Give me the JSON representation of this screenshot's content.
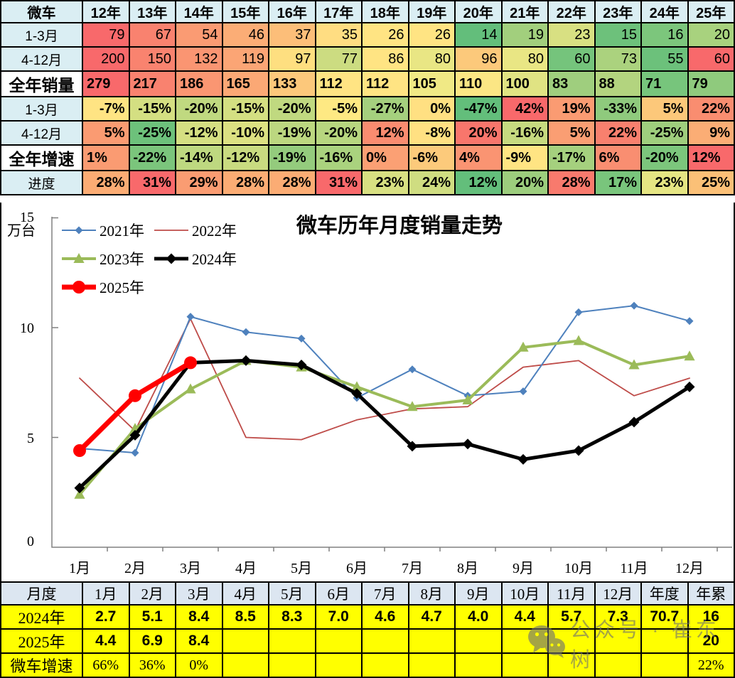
{
  "top_table": {
    "header_bg": "#DAEEF3",
    "label_bg": "#DAEEF3",
    "header": [
      "微车",
      "12年",
      "13年",
      "14年",
      "15年",
      "16年",
      "17年",
      "18年",
      "19年",
      "20年",
      "21年",
      "22年",
      "23年",
      "24年",
      "25年"
    ],
    "rows": [
      {
        "label": "1-3月",
        "big_label": false,
        "bold": false,
        "align": "right",
        "values": [
          "79",
          "67",
          "54",
          "46",
          "37",
          "35",
          "26",
          "26",
          "14",
          "19",
          "23",
          "15",
          "16",
          "20"
        ],
        "colors": [
          "#F8696B",
          "#F9826F",
          "#FA9B73",
          "#FBAD76",
          "#FCBE79",
          "#FFDD82",
          "#FFE483",
          "#FFE483",
          "#63BE7B",
          "#A2CF7D",
          "#D8E082",
          "#6DC17B",
          "#7CC67C",
          "#A8D27E"
        ]
      },
      {
        "label": "4-12月",
        "big_label": false,
        "bold": false,
        "align": "right",
        "values": [
          "200",
          "150",
          "132",
          "119",
          "97",
          "77",
          "86",
          "80",
          "96",
          "80",
          "60",
          "73",
          "55",
          "60"
        ],
        "colors": [
          "#F8696B",
          "#F9836F",
          "#FA9572",
          "#FBA575",
          "#FEDF80",
          "#CCDC81",
          "#FFE483",
          "#E9E684",
          "#FCC97B",
          "#E9E684",
          "#75C47C",
          "#ABD27E",
          "#6CC17B",
          "#F8696B"
        ]
      },
      {
        "label": "全年销量",
        "big_label": true,
        "bold": true,
        "align": "left",
        "values": [
          "279",
          "217",
          "186",
          "165",
          "133",
          "112",
          "112",
          "105",
          "110",
          "100",
          "83",
          "88",
          "71",
          "79"
        ],
        "colors": [
          "#F8696B",
          "#F9826F",
          "#FA9672",
          "#FBA875",
          "#FCC87B",
          "#FFE483",
          "#FFE483",
          "#F0E985",
          "#FBE684",
          "#E0E383",
          "#9FCE7E",
          "#B3D47F",
          "#77C57C",
          "#8FCA7D"
        ]
      },
      {
        "label": "1-3月",
        "big_label": false,
        "bold": true,
        "align": "right",
        "values": [
          "-7%",
          "-15%",
          "-20%",
          "-15%",
          "-20%",
          "-5%",
          "-27%",
          "0%",
          "-47%",
          "42%",
          "19%",
          "-33%",
          "5%",
          "22%"
        ],
        "colors": [
          "#FFE483",
          "#D4DF82",
          "#C0D980",
          "#D4DF82",
          "#C0D980",
          "#FEE983",
          "#A5D07E",
          "#FFE082",
          "#63BE7B",
          "#F8696B",
          "#FA9B72",
          "#8FCA7D",
          "#FCC87A",
          "#F98D70"
        ]
      },
      {
        "label": "4-12月",
        "big_label": false,
        "bold": true,
        "align": "right",
        "values": [
          "5%",
          "-25%",
          "-12%",
          "-10%",
          "-19%",
          "-20%",
          "12%",
          "-8%",
          "20%",
          "-16%",
          "5%",
          "22%",
          "-25%",
          "9%"
        ],
        "colors": [
          "#FA9B72",
          "#6DC17B",
          "#D5DF82",
          "#DCE182",
          "#BCD780",
          "#B7D67F",
          "#F98C70",
          "#FFE082",
          "#F8766C",
          "#C6DA80",
          "#FA9E73",
          "#F8806E",
          "#9FCE7D",
          "#FBAD75"
        ]
      },
      {
        "label": "全年增速",
        "big_label": true,
        "bold": true,
        "align": "left",
        "values": [
          "1%",
          "-22%",
          "-14%",
          "-12%",
          "-19%",
          "-16%",
          "0%",
          "-6%",
          "4%",
          "-9%",
          "-17%",
          "6%",
          "-20%",
          "12%"
        ],
        "colors": [
          "#FA9B72",
          "#7BC57C",
          "#BED880",
          "#C9DB80",
          "#94CB7D",
          "#AAD27E",
          "#FBA074",
          "#FCCA7B",
          "#FA9472",
          "#FFE483",
          "#A5D07E",
          "#F98E71",
          "#7CC67C",
          "#F8696B"
        ]
      },
      {
        "label": "进度",
        "big_label": false,
        "bold": true,
        "align": "right",
        "values": [
          "28%",
          "31%",
          "29%",
          "28%",
          "28%",
          "31%",
          "23%",
          "24%",
          "12%",
          "20%",
          "28%",
          "17%",
          "23%",
          "25%"
        ],
        "colors": [
          "#FBAC74",
          "#F8696B",
          "#FA9C72",
          "#FBAC74",
          "#FBAC74",
          "#F8696B",
          "#D8E082",
          "#CFDD81",
          "#63BE7B",
          "#9CCD7D",
          "#F87A6D",
          "#79C57C",
          "#E5E583",
          "#FBC077"
        ]
      }
    ]
  },
  "chart_data": {
    "type": "line",
    "title": "微车历年月度销量走势",
    "ylabel": "万台",
    "x": [
      "1月",
      "2月",
      "3月",
      "4月",
      "5月",
      "6月",
      "7月",
      "8月",
      "9月",
      "10月",
      "11月",
      "12月"
    ],
    "ylim": [
      0,
      15
    ],
    "yticks": [
      0,
      5,
      10,
      15
    ],
    "grid": false,
    "legend_position": "top-left",
    "series": [
      {
        "name": "2021年",
        "color": "#4E81BD",
        "marker": "diamond",
        "width": 2,
        "values": [
          4.5,
          4.3,
          10.5,
          9.8,
          9.5,
          6.8,
          8.1,
          6.9,
          7.1,
          10.7,
          11.0,
          10.3
        ]
      },
      {
        "name": "2022年",
        "color": "#BE4B48",
        "marker": "none",
        "width": 1.8,
        "values": [
          7.7,
          5.3,
          10.4,
          5.0,
          4.9,
          5.8,
          6.3,
          6.4,
          8.2,
          8.5,
          6.9,
          7.7
        ]
      },
      {
        "name": "2023年",
        "color": "#9BBB59",
        "marker": "triangle",
        "width": 4,
        "values": [
          2.4,
          5.4,
          7.2,
          8.5,
          8.2,
          7.3,
          6.4,
          6.7,
          9.1,
          9.4,
          8.3,
          8.7
        ]
      },
      {
        "name": "2024年",
        "color": "#000000",
        "marker": "diamond",
        "width": 5,
        "values": [
          2.7,
          5.1,
          8.4,
          8.5,
          8.3,
          7.0,
          4.6,
          4.7,
          4.0,
          4.4,
          5.7,
          7.3
        ]
      },
      {
        "name": "2025年",
        "color": "#FF0000",
        "marker": "circle",
        "width": 7,
        "values": [
          4.4,
          6.9,
          8.4
        ]
      }
    ]
  },
  "bottom_table": {
    "header_bg": "#DCE6F1",
    "row_bg": "#FFFF00",
    "header": [
      "月度",
      "1月",
      "2月",
      "3月",
      "4月",
      "5月",
      "6月",
      "7月",
      "8月",
      "9月",
      "10月",
      "11月",
      "12月",
      "年度",
      "年累"
    ],
    "rows": [
      {
        "label": "2024年",
        "serif_values": false,
        "values": [
          "2.7",
          "5.1",
          "8.4",
          "8.5",
          "8.3",
          "7.0",
          "4.6",
          "4.7",
          "4.0",
          "4.4",
          "5.7",
          "7.3",
          "70.7",
          "16"
        ]
      },
      {
        "label": "2025年",
        "serif_values": false,
        "values": [
          "4.4",
          "6.9",
          "8.4",
          "",
          "",
          "",
          "",
          "",
          "",
          "",
          "",
          "",
          "",
          "20"
        ]
      },
      {
        "label": "微车增速",
        "serif_values": true,
        "values": [
          "66%",
          "36%",
          "0%",
          "",
          "",
          "",
          "",
          "",
          "",
          "",
          "",
          "",
          "",
          "22%"
        ]
      }
    ]
  },
  "watermark": {
    "text": "公众号 · 崔东树",
    "icon": "wechat-icon",
    "color": "#6f6f6f"
  }
}
